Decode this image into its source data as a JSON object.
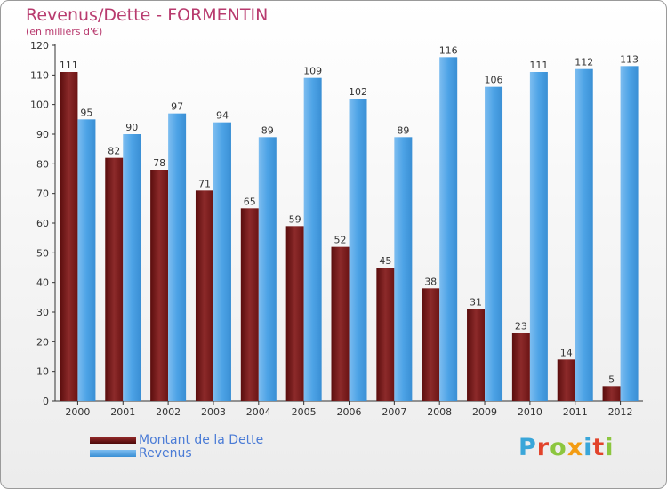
{
  "header": {
    "title": "Revenus/Dette - FORMENTIN",
    "subtitle": "(en milliers d'€)"
  },
  "logo": {
    "text": "Proxiti",
    "colors": [
      "#3aa6d9",
      "#e2432b",
      "#8cc63f",
      "#f39c12",
      "#3aa6d9",
      "#e2432b",
      "#8cc63f"
    ]
  },
  "colors": {
    "dette": "#7a1b1b",
    "revenus": "#4da3e6",
    "title": "#b83a6e",
    "legend_text": "#4a7bd6"
  },
  "chart_data": {
    "type": "bar",
    "categories": [
      "2000",
      "2001",
      "2002",
      "2003",
      "2004",
      "2005",
      "2006",
      "2007",
      "2008",
      "2009",
      "2010",
      "2011",
      "2012"
    ],
    "series": [
      {
        "name": "Montant de la Dette",
        "values": [
          111,
          82,
          78,
          71,
          65,
          59,
          52,
          45,
          38,
          31,
          23,
          14,
          5
        ]
      },
      {
        "name": "Revenus",
        "values": [
          95,
          90,
          97,
          94,
          89,
          109,
          102,
          89,
          116,
          106,
          111,
          112,
          113
        ]
      }
    ],
    "yticks": [
      0,
      10,
      20,
      30,
      40,
      50,
      60,
      70,
      80,
      90,
      100,
      110,
      120
    ],
    "ylim": [
      0,
      120
    ],
    "grid": false,
    "legend_position": "bottom-left"
  }
}
